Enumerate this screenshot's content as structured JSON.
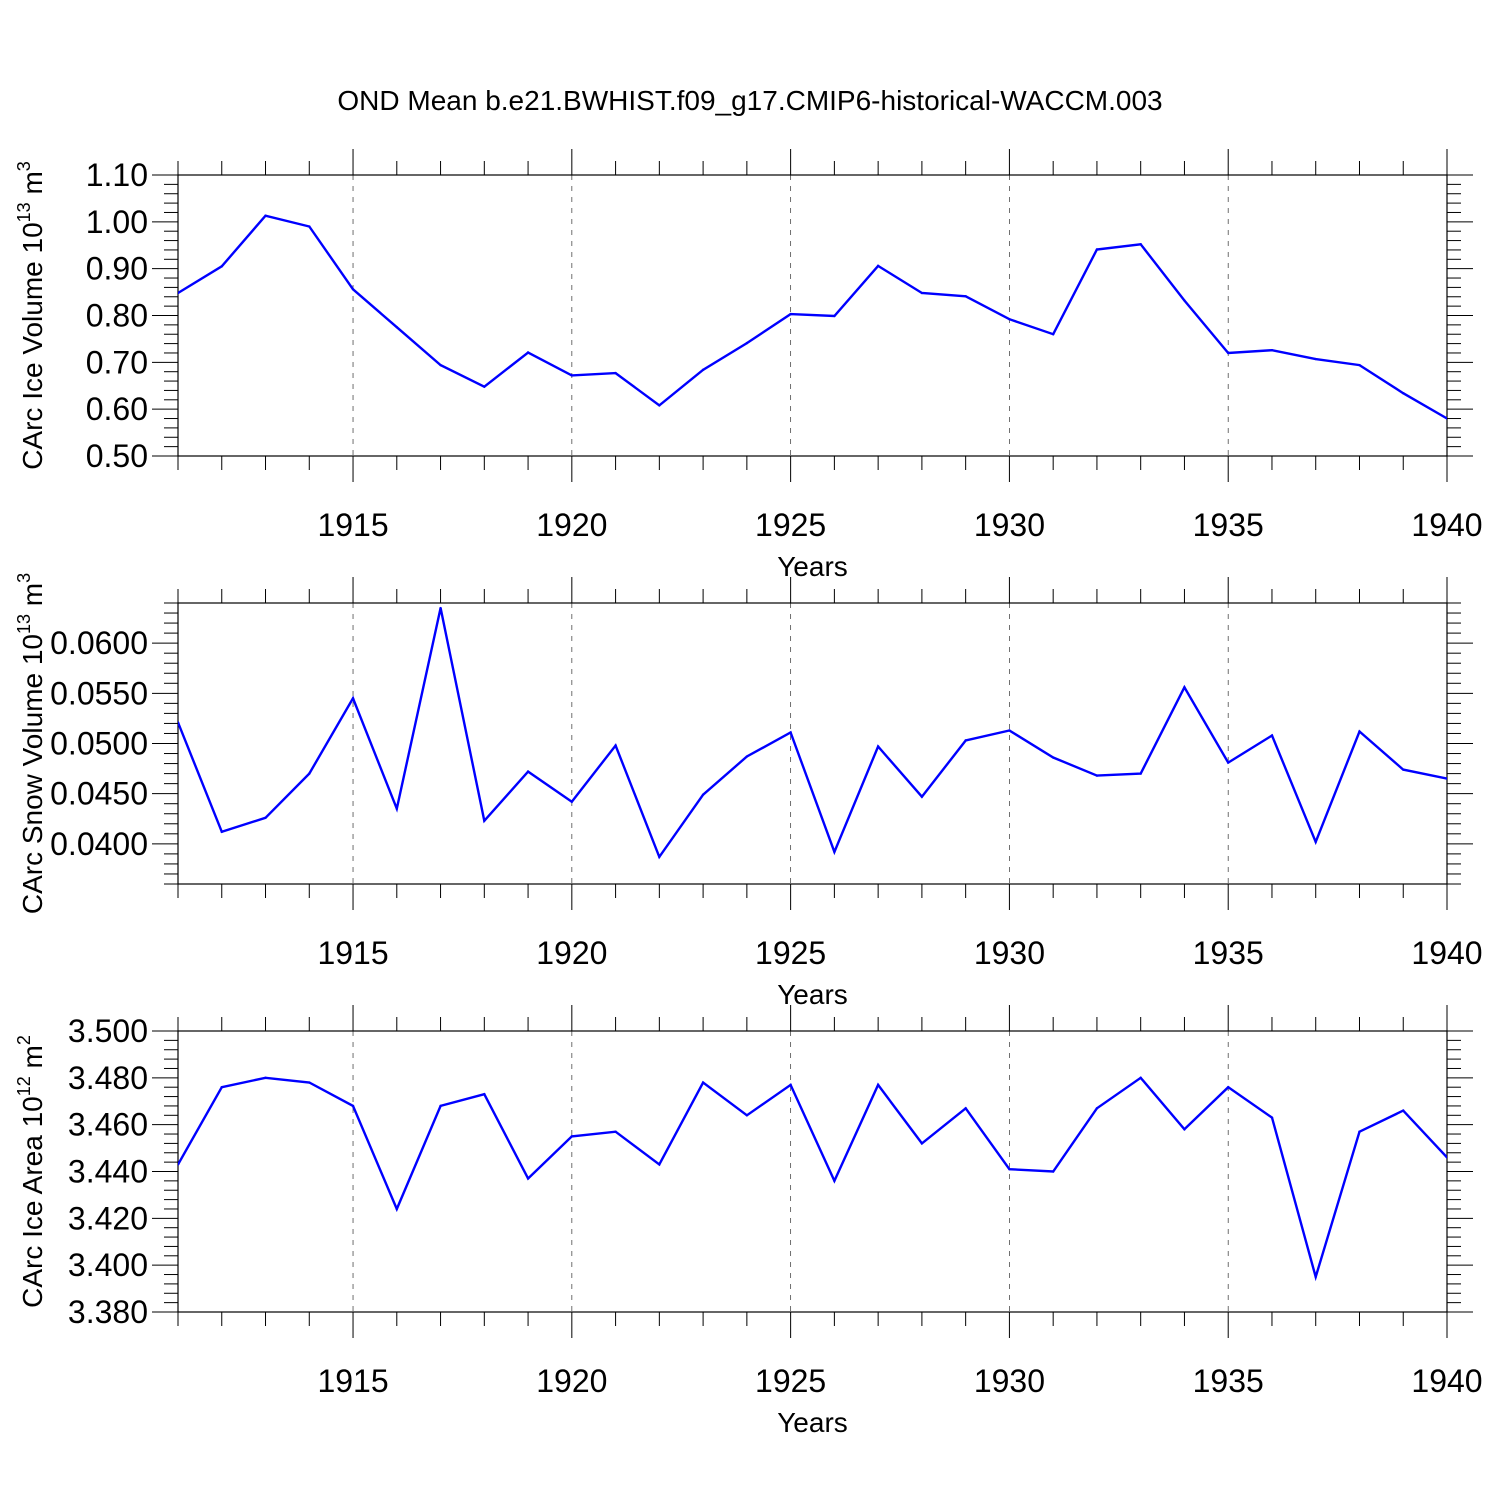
{
  "title": "OND Mean b.e21.BWHIST.f09_g17.CMIP6-historical-WACCM.003",
  "colors": {
    "line": "#0000ff",
    "axis": "#000000",
    "grid": "#000000"
  },
  "chart_data": [
    {
      "type": "line",
      "ylabel": {
        "text": "CArc Ice Volume 10",
        "exponent": "13",
        "unit": " m",
        "unit_exponent": "3"
      },
      "xlabel": "Years",
      "xlim": [
        1911,
        1940
      ],
      "ylim": [
        0.5,
        1.1
      ],
      "x_tick_values": [
        1915,
        1920,
        1925,
        1930,
        1935,
        1940
      ],
      "x_tick_labels": [
        "1915",
        "1920",
        "1925",
        "1930",
        "1935",
        "1940"
      ],
      "y_tick_values": [
        0.5,
        0.6,
        0.7,
        0.8,
        0.9,
        1.0,
        1.1
      ],
      "y_tick_labels": [
        "0.50",
        "0.60",
        "0.70",
        "0.80",
        "0.90",
        "1.00",
        "1.10"
      ],
      "grid": "vertical dashed at major x ticks",
      "x": [
        1911,
        1912,
        1913,
        1914,
        1915,
        1916,
        1917,
        1918,
        1919,
        1920,
        1921,
        1922,
        1923,
        1924,
        1925,
        1926,
        1927,
        1928,
        1929,
        1930,
        1931,
        1932,
        1933,
        1934,
        1935,
        1936,
        1937,
        1938,
        1939,
        1940
      ],
      "series": [
        {
          "name": "CArc Ice Volume",
          "values": [
            0.848,
            0.905,
            1.013,
            0.99,
            0.856,
            0.775,
            0.694,
            0.648,
            0.721,
            0.672,
            0.677,
            0.608,
            0.684,
            0.741,
            0.803,
            0.799,
            0.906,
            0.848,
            0.841,
            0.792,
            0.76,
            0.941,
            0.952,
            0.832,
            0.72,
            0.726,
            0.707,
            0.694,
            0.634,
            0.58
          ]
        }
      ]
    },
    {
      "type": "line",
      "ylabel": {
        "text": "CArc Snow Volume 10",
        "exponent": "13",
        "unit": " m",
        "unit_exponent": "3"
      },
      "xlabel": "Years",
      "xlim": [
        1911,
        1940
      ],
      "ylim": [
        0.036,
        0.064
      ],
      "x_tick_values": [
        1915,
        1920,
        1925,
        1930,
        1935,
        1940
      ],
      "x_tick_labels": [
        "1915",
        "1920",
        "1925",
        "1930",
        "1935",
        "1940"
      ],
      "y_tick_values": [
        0.04,
        0.045,
        0.05,
        0.055,
        0.06
      ],
      "y_tick_labels": [
        "0.0400",
        "0.0450",
        "0.0500",
        "0.0550",
        "0.0600"
      ],
      "grid": "vertical dashed at major x ticks",
      "x": [
        1911,
        1912,
        1913,
        1914,
        1915,
        1916,
        1917,
        1918,
        1919,
        1920,
        1921,
        1922,
        1923,
        1924,
        1925,
        1926,
        1927,
        1928,
        1929,
        1930,
        1931,
        1932,
        1933,
        1934,
        1935,
        1936,
        1937,
        1938,
        1939,
        1940
      ],
      "series": [
        {
          "name": "CArc Snow Volume",
          "values": [
            0.0521,
            0.0412,
            0.0426,
            0.047,
            0.0545,
            0.0435,
            0.0635,
            0.0423,
            0.0472,
            0.0442,
            0.0498,
            0.0387,
            0.0449,
            0.0487,
            0.0511,
            0.0392,
            0.0497,
            0.0447,
            0.0503,
            0.0513,
            0.0486,
            0.0468,
            0.047,
            0.0556,
            0.0481,
            0.0508,
            0.0402,
            0.0512,
            0.0474,
            0.0465
          ]
        }
      ]
    },
    {
      "type": "line",
      "ylabel": {
        "text": "CArc Ice Area 10",
        "exponent": "12",
        "unit": " m",
        "unit_exponent": "2"
      },
      "xlabel": "Years",
      "xlim": [
        1911,
        1940
      ],
      "ylim": [
        3.38,
        3.5
      ],
      "x_tick_values": [
        1915,
        1920,
        1925,
        1930,
        1935,
        1940
      ],
      "x_tick_labels": [
        "1915",
        "1920",
        "1925",
        "1930",
        "1935",
        "1940"
      ],
      "y_tick_values": [
        3.38,
        3.4,
        3.42,
        3.44,
        3.46,
        3.48,
        3.5
      ],
      "y_tick_labels": [
        "3.380",
        "3.400",
        "3.420",
        "3.440",
        "3.460",
        "3.480",
        "3.500"
      ],
      "grid": "vertical dashed at major x ticks",
      "x": [
        1911,
        1912,
        1913,
        1914,
        1915,
        1916,
        1917,
        1918,
        1919,
        1920,
        1921,
        1922,
        1923,
        1924,
        1925,
        1926,
        1927,
        1928,
        1929,
        1930,
        1931,
        1932,
        1933,
        1934,
        1935,
        1936,
        1937,
        1938,
        1939,
        1940
      ],
      "series": [
        {
          "name": "CArc Ice Area",
          "values": [
            3.443,
            3.476,
            3.48,
            3.478,
            3.468,
            3.424,
            3.468,
            3.473,
            3.437,
            3.455,
            3.457,
            3.443,
            3.478,
            3.464,
            3.477,
            3.436,
            3.477,
            3.452,
            3.467,
            3.441,
            3.44,
            3.467,
            3.48,
            3.458,
            3.476,
            3.463,
            3.395,
            3.457,
            3.466,
            3.446
          ]
        }
      ]
    }
  ]
}
